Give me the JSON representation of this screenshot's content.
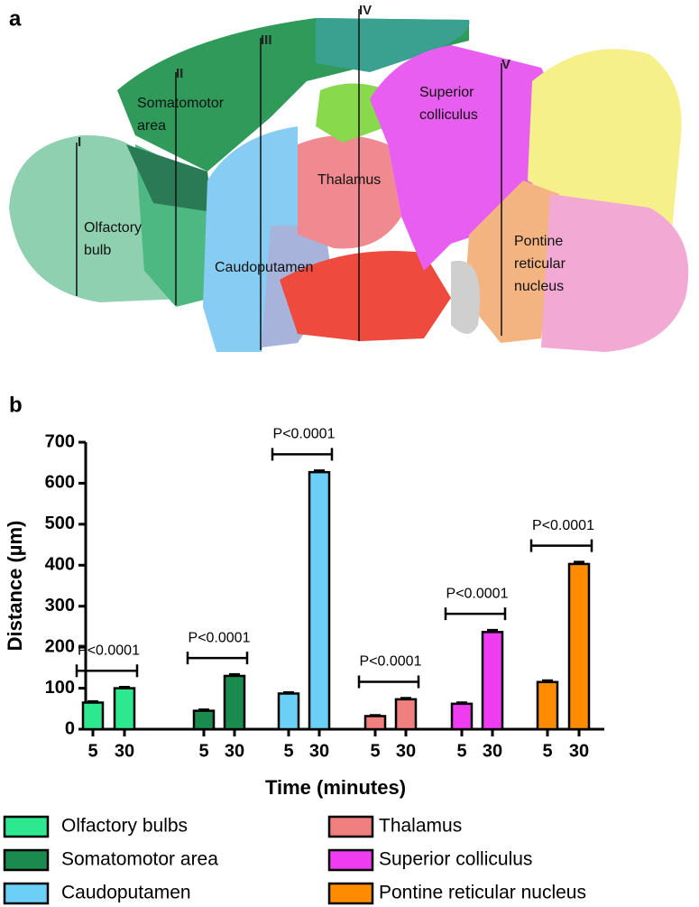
{
  "panels": [
    "a",
    "b"
  ],
  "diagram": {
    "sections": [
      "I",
      "II",
      "III",
      "IV",
      "V"
    ],
    "regions": [
      {
        "lines": [
          "Somatomotor",
          "area"
        ]
      },
      {
        "lines": [
          "Olfactory",
          "bulb"
        ]
      },
      {
        "lines": [
          "Thalamus"
        ]
      },
      {
        "lines": [
          "Caudoputamen"
        ]
      },
      {
        "lines": [
          "Superior",
          "colliculus"
        ]
      },
      {
        "lines": [
          "Pontine",
          "reticular",
          "nucleus"
        ]
      }
    ]
  },
  "chart_data": {
    "type": "bar",
    "ylabel": "Distance (µm)",
    "xlabel": "Time (minutes)",
    "categories": [
      "5",
      "30"
    ],
    "ylim": [
      0,
      700
    ],
    "yticks": [
      0,
      100,
      200,
      300,
      400,
      500,
      600,
      700
    ],
    "series": [
      {
        "name": "Olfactory bulbs",
        "color": "#2ee88f",
        "values": [
          65,
          100
        ],
        "errors": [
          3,
          3
        ],
        "annotation": "P<0.0001"
      },
      {
        "name": "Somatomotor area",
        "color": "#1b8a4e",
        "values": [
          45,
          130
        ],
        "errors": [
          3,
          4
        ],
        "annotation": "P<0.0001"
      },
      {
        "name": "Caudoputamen",
        "color": "#6ccff6",
        "values": [
          87,
          627
        ],
        "errors": [
          3,
          4
        ],
        "annotation": "P<0.0001"
      },
      {
        "name": "Thalamus",
        "color": "#f08080",
        "values": [
          32,
          73
        ],
        "errors": [
          2,
          3
        ],
        "annotation": "P<0.0001"
      },
      {
        "name": "Superior colliculus",
        "color": "#f03cf0",
        "values": [
          62,
          237
        ],
        "errors": [
          3,
          5
        ],
        "annotation": "P<0.0001"
      },
      {
        "name": "Pontine reticular nucleus",
        "color": "#ff8c00",
        "values": [
          115,
          403
        ],
        "errors": [
          4,
          5
        ],
        "annotation": "P<0.0001"
      }
    ]
  }
}
